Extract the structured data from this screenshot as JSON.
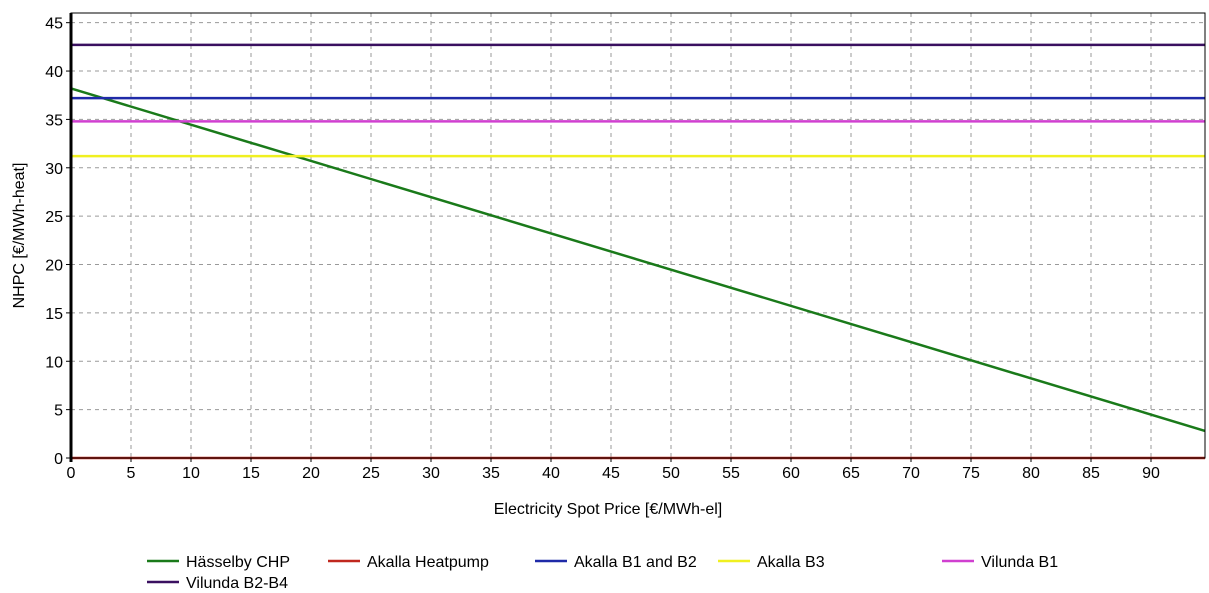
{
  "chart_data": {
    "type": "line",
    "title": "",
    "xlabel": "Electricity Spot Price [€/MWh-el]",
    "ylabel": "NHPC [€/MWh-heat]",
    "xlim": [
      0,
      94.5
    ],
    "ylim": [
      0,
      46
    ],
    "xticks": [
      0,
      5,
      10,
      15,
      20,
      25,
      30,
      35,
      40,
      45,
      50,
      55,
      60,
      65,
      70,
      75,
      80,
      85,
      90
    ],
    "yticks": [
      0,
      5,
      10,
      15,
      20,
      25,
      30,
      35,
      40,
      45
    ],
    "grid": true,
    "legend_position": "bottom",
    "series": [
      {
        "name": "Hässelby CHP",
        "color": "#1a7a1a",
        "x": [
          0,
          94.5
        ],
        "y": [
          38.2,
          2.8
        ]
      },
      {
        "name": "Akalla Heatpump",
        "color": "#c0281e",
        "x": [
          0,
          94.5
        ],
        "y": [
          0,
          0
        ]
      },
      {
        "name": "Akalla B1 and B2",
        "color": "#1f2aa8",
        "x": [
          0,
          94.5
        ],
        "y": [
          37.2,
          37.2
        ]
      },
      {
        "name": "Akalla B3",
        "color": "#f0f020",
        "x": [
          0,
          94.5
        ],
        "y": [
          31.2,
          31.2
        ]
      },
      {
        "name": "Vilunda B1",
        "color": "#d040d0",
        "x": [
          0,
          94.5
        ],
        "y": [
          34.8,
          34.8
        ]
      },
      {
        "name": "Vilunda B2-B4",
        "color": "#3a1060",
        "x": [
          0,
          94.5
        ],
        "y": [
          42.7,
          42.7
        ]
      }
    ]
  }
}
